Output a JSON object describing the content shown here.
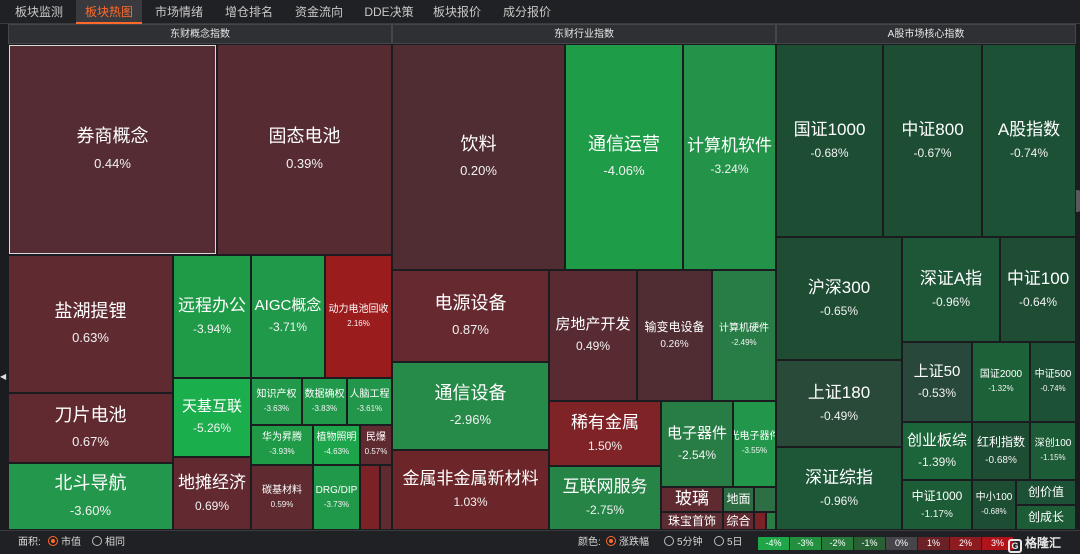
{
  "tabs": [
    "板块监测",
    "板块热图",
    "市场情绪",
    "增仓排名",
    "资金流向",
    "DDE决策",
    "板块报价",
    "成分报价"
  ],
  "active_tab": "板块热图",
  "sections": {
    "concept": {
      "title": "东财概念指数"
    },
    "industry": {
      "title": "东财行业指数"
    },
    "core": {
      "title": "A股市场核心指数"
    }
  },
  "tiles": [
    {
      "name": "券商概念",
      "pct": "0.44%",
      "color": "#552c33"
    },
    {
      "name": "固态电池",
      "pct": "0.39%",
      "color": "#562c32"
    },
    {
      "name": "盐湖提锂",
      "pct": "0.63%",
      "color": "#5f2a30"
    },
    {
      "name": "远程办公",
      "pct": "-3.94%",
      "color": "#1f9b48"
    },
    {
      "name": "AIGC概念",
      "pct": "-3.71%",
      "color": "#21994a"
    },
    {
      "name": "动力电池回收",
      "pct": "2.16%",
      "color": "#9b1c1d"
    },
    {
      "name": "天基互联",
      "pct": "-5.26%",
      "color": "#1bae4c"
    },
    {
      "name": "知识产权",
      "pct": "-3.63%",
      "color": "#22984b"
    },
    {
      "name": "数据确权",
      "pct": "-3.83%",
      "color": "#20994a"
    },
    {
      "name": "人脑工程",
      "pct": "-3.61%",
      "color": "#22974b"
    },
    {
      "name": "刀片电池",
      "pct": "0.67%",
      "color": "#612a30"
    },
    {
      "name": "华为昇腾",
      "pct": "-3.93%",
      "color": "#1f9b48"
    },
    {
      "name": "植物照明",
      "pct": "-4.63%",
      "color": "#1da54b"
    },
    {
      "name": "民爆",
      "pct": "0.57%",
      "color": "#5f2b31"
    },
    {
      "name": "北斗导航",
      "pct": "-3.60%",
      "color": "#23974b"
    },
    {
      "name": "地摊经济",
      "pct": "0.69%",
      "color": "#622a30"
    },
    {
      "name": "碳基材料",
      "pct": "0.59%",
      "color": "#5f2b31"
    },
    {
      "name": "DRG/DIP",
      "pct": "-3.73%",
      "color": "#21994a"
    },
    {
      "name": "",
      "pct": "",
      "color": "#7a2225"
    },
    {
      "name": "",
      "pct": "",
      "color": "#5f2b31"
    },
    {
      "name": "饮料",
      "pct": "0.20%",
      "color": "#4f2d33"
    },
    {
      "name": "通信运营",
      "pct": "-4.06%",
      "color": "#1f9c48"
    },
    {
      "name": "计算机软件",
      "pct": "-3.24%",
      "color": "#24934a"
    },
    {
      "name": "电源设备",
      "pct": "0.87%",
      "color": "#66292f"
    },
    {
      "name": "房地产开发",
      "pct": "0.49%",
      "color": "#582b32"
    },
    {
      "name": "输变电设备",
      "pct": "0.26%",
      "color": "#502d33"
    },
    {
      "name": "计算机硬件",
      "pct": "-2.49%",
      "color": "#287c45"
    },
    {
      "name": "通信设备",
      "pct": "-2.96%",
      "color": "#268a48"
    },
    {
      "name": "稀有金属",
      "pct": "1.50%",
      "color": "#7f2327"
    },
    {
      "name": "电子器件",
      "pct": "-2.54%",
      "color": "#287d45"
    },
    {
      "name": "光电子器件",
      "pct": "-3.55%",
      "color": "#22974b"
    },
    {
      "name": "金属非金属新材料",
      "pct": "1.03%",
      "color": "#6c2629"
    },
    {
      "name": "互联网服务",
      "pct": "-2.75%",
      "color": "#268447"
    },
    {
      "name": "玻璃",
      "pct": "",
      "color": "#5f2b31"
    },
    {
      "name": "地面",
      "pct": "",
      "color": "#2d6b42"
    },
    {
      "name": "珠宝首饰",
      "pct": "",
      "color": "#5b2c32"
    },
    {
      "name": "综合",
      "pct": "",
      "color": "#5f2b31"
    },
    {
      "name": "",
      "pct": "",
      "color": "#2e6e44"
    },
    {
      "name": "",
      "pct": "",
      "color": "#7a2225"
    },
    {
      "name": "",
      "pct": "",
      "color": "#2a7c45"
    },
    {
      "name": "国证1000",
      "pct": "-0.68%",
      "color": "#1d4e34"
    },
    {
      "name": "中证800",
      "pct": "-0.67%",
      "color": "#1d4e34"
    },
    {
      "name": "A股指数",
      "pct": "-0.74%",
      "color": "#1d5135"
    },
    {
      "name": "沪深300",
      "pct": "-0.65%",
      "color": "#1e4d34"
    },
    {
      "name": "深证A指",
      "pct": "-0.96%",
      "color": "#1d5738"
    },
    {
      "name": "中证100",
      "pct": "-0.64%",
      "color": "#1e4d34"
    },
    {
      "name": "上证180",
      "pct": "-0.49%",
      "color": "#294a38"
    },
    {
      "name": "上证50",
      "pct": "-0.53%",
      "color": "#27483a"
    },
    {
      "name": "国证2000",
      "pct": "-1.32%",
      "color": "#1c6238"
    },
    {
      "name": "中证500",
      "pct": "-0.74%",
      "color": "#1d5135"
    },
    {
      "name": "深证综指",
      "pct": "-0.96%",
      "color": "#1d5738"
    },
    {
      "name": "创业板综",
      "pct": "-1.39%",
      "color": "#1c653a"
    },
    {
      "name": "红利指数",
      "pct": "-0.68%",
      "color": "#1d4e34"
    },
    {
      "name": "深创100",
      "pct": "-1.15%",
      "color": "#1c5d37"
    },
    {
      "name": "中证1000",
      "pct": "-1.17%",
      "color": "#1c5d37"
    },
    {
      "name": "中小100",
      "pct": "-0.68%",
      "color": "#1d4e34"
    },
    {
      "name": "创价值",
      "pct": "",
      "color": "#1d5135"
    },
    {
      "name": "创成长",
      "pct": "",
      "color": "#1c5d37"
    }
  ],
  "bottom": {
    "area_label": "面积:",
    "area_opts": [
      "市值",
      "相同"
    ],
    "color_label": "颜色:",
    "color_opts": [
      "涨跌幅",
      "5分钟",
      "5日"
    ],
    "legend": [
      {
        "label": "-4%",
        "color": "#1fa648"
      },
      {
        "label": "-3%",
        "color": "#22903f"
      },
      {
        "label": "-2%",
        "color": "#267a3a"
      },
      {
        "label": "-1%",
        "color": "#285f35"
      },
      {
        "label": "0%",
        "color": "#45454a"
      },
      {
        "label": "1%",
        "color": "#6a2227"
      },
      {
        "label": "2%",
        "color": "#8d1c20"
      },
      {
        "label": "3%",
        "color": "#b0141a"
      }
    ],
    "brand": "格隆汇",
    "brand_mark": "G"
  }
}
